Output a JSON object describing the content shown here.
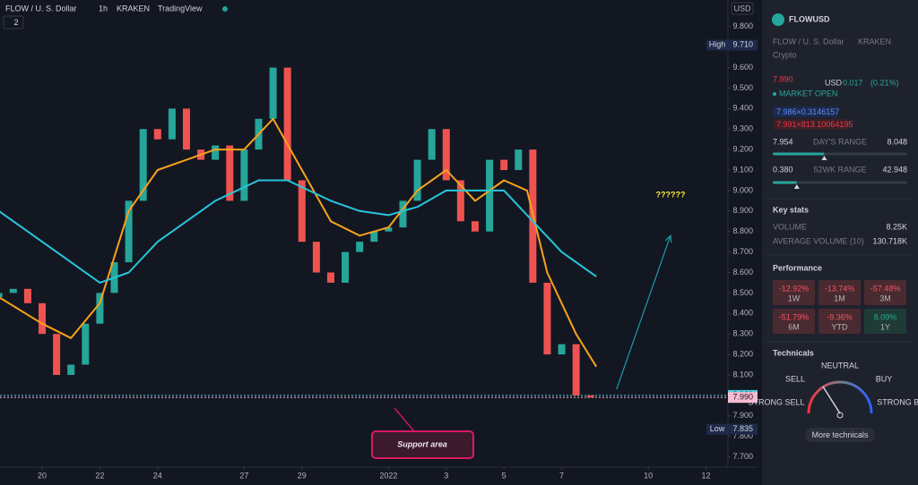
{
  "chart_data": {
    "type": "candlestick",
    "title": "FLOW / U. S. Dollar",
    "interval": "1h",
    "exchange": "KRAKEN",
    "source": "TradingView",
    "pane_badge": "2",
    "currency": "USD",
    "x": [
      -1.5,
      -1,
      -0.5,
      0,
      0.5,
      1,
      1.5,
      2,
      2.5,
      3,
      3.5,
      4,
      4.5,
      5,
      5.5,
      6,
      6.5,
      7,
      7.5,
      8,
      8.5,
      9,
      9.5,
      10,
      10.5,
      11,
      11.5,
      12,
      12.5,
      13,
      13.5,
      14,
      14.5,
      15,
      15.5,
      16,
      16.5,
      17,
      17.5,
      18,
      18.5,
      19
    ],
    "open": [
      8.48,
      8.5,
      8.52,
      8.45,
      8.3,
      8.1,
      8.15,
      8.35,
      8.5,
      8.65,
      8.95,
      9.3,
      9.25,
      9.4,
      9.2,
      9.15,
      9.22,
      8.95,
      9.2,
      9.35,
      9.6,
      9.05,
      8.75,
      8.6,
      8.55,
      8.7,
      8.75,
      8.8,
      8.82,
      8.95,
      9.15,
      9.3,
      9.05,
      8.85,
      8.8,
      9.15,
      9.1,
      9.2,
      8.55,
      8.2,
      8.25,
      8.0
    ],
    "high": {
      "text": "High",
      "value": 9.71,
      "label": "9.710"
    },
    "low": {
      "text": "Low",
      "value": 7.835,
      "label": "7.835"
    },
    "close": [
      8.5,
      8.52,
      8.45,
      8.3,
      8.1,
      8.15,
      8.35,
      8.5,
      8.65,
      8.95,
      9.3,
      9.25,
      9.4,
      9.2,
      9.15,
      9.22,
      8.95,
      9.2,
      9.35,
      9.6,
      9.05,
      8.75,
      8.6,
      8.55,
      8.7,
      8.75,
      8.8,
      8.82,
      8.95,
      9.15,
      9.3,
      9.05,
      8.85,
      8.8,
      9.15,
      9.1,
      9.2,
      8.55,
      8.2,
      8.25,
      8.0,
      7.99
    ],
    "up_color": "#26a69a",
    "down_color": "#ef5350",
    "lines": [
      {
        "color": "#f7a21b",
        "x": [
          -1.5,
          0,
          1,
          2,
          3,
          4,
          5,
          6,
          7,
          8,
          9,
          10,
          11,
          12,
          13,
          14,
          15,
          16,
          16.8,
          17.5,
          18.5,
          19.2
        ],
        "values": [
          8.48,
          8.35,
          8.28,
          8.45,
          8.9,
          9.1,
          9.15,
          9.2,
          9.2,
          9.35,
          9.1,
          8.85,
          8.78,
          8.82,
          9.0,
          9.1,
          8.95,
          9.05,
          9.0,
          8.6,
          8.3,
          8.14
        ]
      },
      {
        "color": "#26c6da",
        "x": [
          -1.5,
          0.5,
          2,
          3,
          4,
          5,
          6,
          7.5,
          8.5,
          10,
          11,
          12,
          13,
          14,
          15,
          16,
          17,
          18,
          19.2
        ],
        "values": [
          8.9,
          8.7,
          8.55,
          8.6,
          8.75,
          8.85,
          8.95,
          9.05,
          9.05,
          8.95,
          8.9,
          8.88,
          8.92,
          9.0,
          9.0,
          9.0,
          8.85,
          8.7,
          8.58
        ]
      }
    ],
    "arrow": {
      "color": "#1e9aa7",
      "x": [
        19.9,
        21.77
      ],
      "values": [
        8.03,
        8.78
      ]
    },
    "annotations": [
      "??????",
      "Support area"
    ],
    "price_lines": [
      {
        "value": 8.0,
        "label": "8.000",
        "color": "#4dd0e1"
      },
      {
        "value": 7.99,
        "label": "7.990",
        "color": "#f8bbd0"
      }
    ],
    "xlim": [
      -1.46,
      23.76
    ],
    "ylim": [
      7.65,
      9.93
    ],
    "grid": false,
    "xticks": [
      {
        "value": 0,
        "label": "20"
      },
      {
        "value": 2,
        "label": "22"
      },
      {
        "value": 4,
        "label": "24"
      },
      {
        "value": 7,
        "label": "27"
      },
      {
        "value": 9,
        "label": "29"
      },
      {
        "value": 12,
        "label": "2022"
      },
      {
        "value": 14,
        "label": "3"
      },
      {
        "value": 16,
        "label": "5"
      },
      {
        "value": 18,
        "label": "7"
      },
      {
        "value": 21,
        "label": "10"
      },
      {
        "value": 23,
        "label": "12"
      }
    ],
    "yticks": [
      {
        "value": 9.8,
        "label": "9.800"
      },
      {
        "value": 9.6,
        "label": "9.600"
      },
      {
        "value": 9.5,
        "label": "9.500"
      },
      {
        "value": 9.4,
        "label": "9.400"
      },
      {
        "value": 9.3,
        "label": "9.300"
      },
      {
        "value": 9.2,
        "label": "9.200"
      },
      {
        "value": 9.1,
        "label": "9.100"
      },
      {
        "value": 9.0,
        "label": "9.000"
      },
      {
        "value": 8.9,
        "label": "8.900"
      },
      {
        "value": 8.8,
        "label": "8.800"
      },
      {
        "value": 8.7,
        "label": "8.700"
      },
      {
        "value": 8.6,
        "label": "8.600"
      },
      {
        "value": 8.5,
        "label": "8.500"
      },
      {
        "value": 8.4,
        "label": "8.400"
      },
      {
        "value": 8.3,
        "label": "8.300"
      },
      {
        "value": 8.2,
        "label": "8.200"
      },
      {
        "value": 8.1,
        "label": "8.100"
      },
      {
        "value": 7.9,
        "label": "7.900"
      },
      {
        "value": 7.8,
        "label": "7.800"
      },
      {
        "value": 7.7,
        "label": "7.700"
      }
    ]
  },
  "sidebar": {
    "symbol": "FLOWUSD",
    "name": "FLOW / U. S. Dollar",
    "exchange": "KRAKEN",
    "category": "Crypto",
    "price": "7.990",
    "currency": "USD",
    "change": "0.017",
    "change_pct": "(0.21%)",
    "status": "MARKET OPEN",
    "bid": "7.986×0.3146157",
    "ask": "7.991×813.10064195",
    "day_range": {
      "low": "7.954",
      "label": "DAY'S RANGE",
      "high": "8.048"
    },
    "week52_range": {
      "low": "0.380",
      "label": "52WK RANGE",
      "high": "42.948"
    },
    "key_stats": {
      "title": "Key stats",
      "rows": [
        [
          "VOLUME",
          "8.25K"
        ],
        [
          "AVERAGE VOLUME (10)",
          "130.718K"
        ]
      ]
    },
    "performance": {
      "title": "Performance",
      "cells": [
        [
          "-12.92%",
          "1W"
        ],
        [
          "-13.74%",
          "1M"
        ],
        [
          "-57.48%",
          "3M"
        ],
        [
          "-51.79%",
          "6M"
        ],
        [
          "-9.36%",
          "YTD"
        ],
        [
          "8.09%",
          "1Y"
        ]
      ]
    },
    "technicals": {
      "title": "Technicals",
      "strong_sell": "STRONG SELL",
      "sell": "SELL",
      "neutral": "NEUTRAL",
      "buy": "BUY",
      "strong_buy": "STRONG BUY",
      "button": "More technicals"
    }
  }
}
